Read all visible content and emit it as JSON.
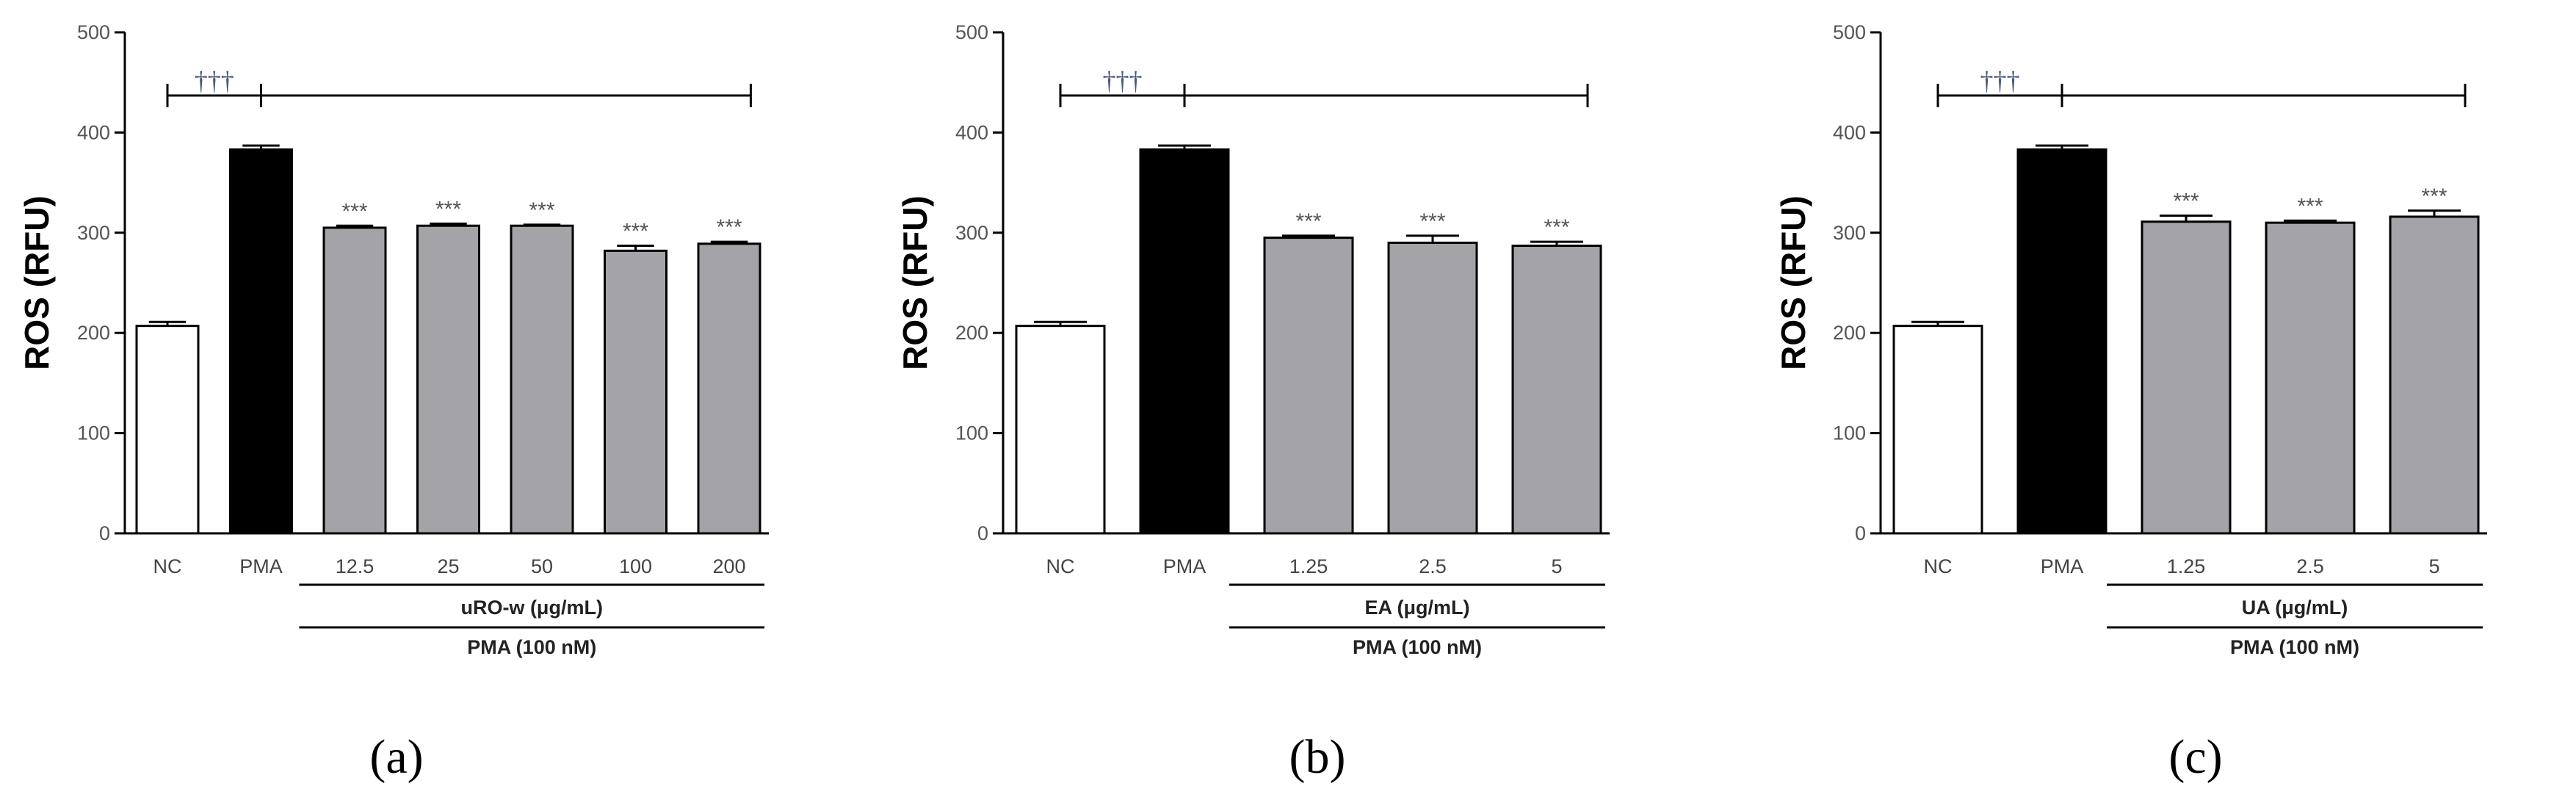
{
  "chart_data": [
    {
      "type": "bar",
      "panel_label": "(a)",
      "ylabel": "ROS (RFU)",
      "ylim": [
        0,
        500
      ],
      "yticks": [
        "0",
        "100",
        "200",
        "300",
        "400",
        "500"
      ],
      "categories": [
        "NC",
        "PMA",
        "12.5",
        "25",
        "50",
        "100",
        "200"
      ],
      "values": [
        207,
        383,
        305,
        307,
        307,
        282,
        289
      ],
      "errors": [
        4,
        4,
        2,
        2,
        1,
        5,
        2
      ],
      "bar_colors": [
        "#ffffff",
        "#000000",
        "#a3a3a8",
        "#a3a3a8",
        "#a3a3a8",
        "#a3a3a8",
        "#a3a3a8"
      ],
      "significance": [
        "",
        "",
        "***",
        "***",
        "***",
        "***",
        "***"
      ],
      "bracket_mark": "†††",
      "group_label": "uRO-w (μg/mL)",
      "treatment_label": "PMA (100 nM)"
    },
    {
      "type": "bar",
      "panel_label": "(b)",
      "ylabel": "ROS (RFU)",
      "ylim": [
        0,
        500
      ],
      "yticks": [
        "0",
        "100",
        "200",
        "300",
        "400",
        "500"
      ],
      "categories": [
        "NC",
        "PMA",
        "1.25",
        "2.5",
        "5"
      ],
      "values": [
        207,
        383,
        295,
        290,
        287
      ],
      "errors": [
        4,
        4,
        2,
        7,
        4
      ],
      "bar_colors": [
        "#ffffff",
        "#000000",
        "#a3a3a8",
        "#a3a3a8",
        "#a3a3a8"
      ],
      "significance": [
        "",
        "",
        "***",
        "***",
        "***"
      ],
      "bracket_mark": "†††",
      "group_label": "EA (μg/mL)",
      "treatment_label": "PMA (100 nM)"
    },
    {
      "type": "bar",
      "panel_label": "(c)",
      "ylabel": "ROS (RFU)",
      "ylim": [
        0,
        500
      ],
      "yticks": [
        "0",
        "100",
        "200",
        "300",
        "400",
        "500"
      ],
      "categories": [
        "NC",
        "PMA",
        "1.25",
        "2.5",
        "5"
      ],
      "values": [
        207,
        383,
        311,
        310,
        316
      ],
      "errors": [
        4,
        4,
        6,
        2,
        6
      ],
      "bar_colors": [
        "#ffffff",
        "#000000",
        "#a3a3a8",
        "#a3a3a8",
        "#a3a3a8"
      ],
      "significance": [
        "",
        "",
        "***",
        "***",
        "***"
      ],
      "bracket_mark": "†††",
      "group_label": "UA (μg/mL)",
      "treatment_label": "PMA (100 nM)"
    }
  ]
}
